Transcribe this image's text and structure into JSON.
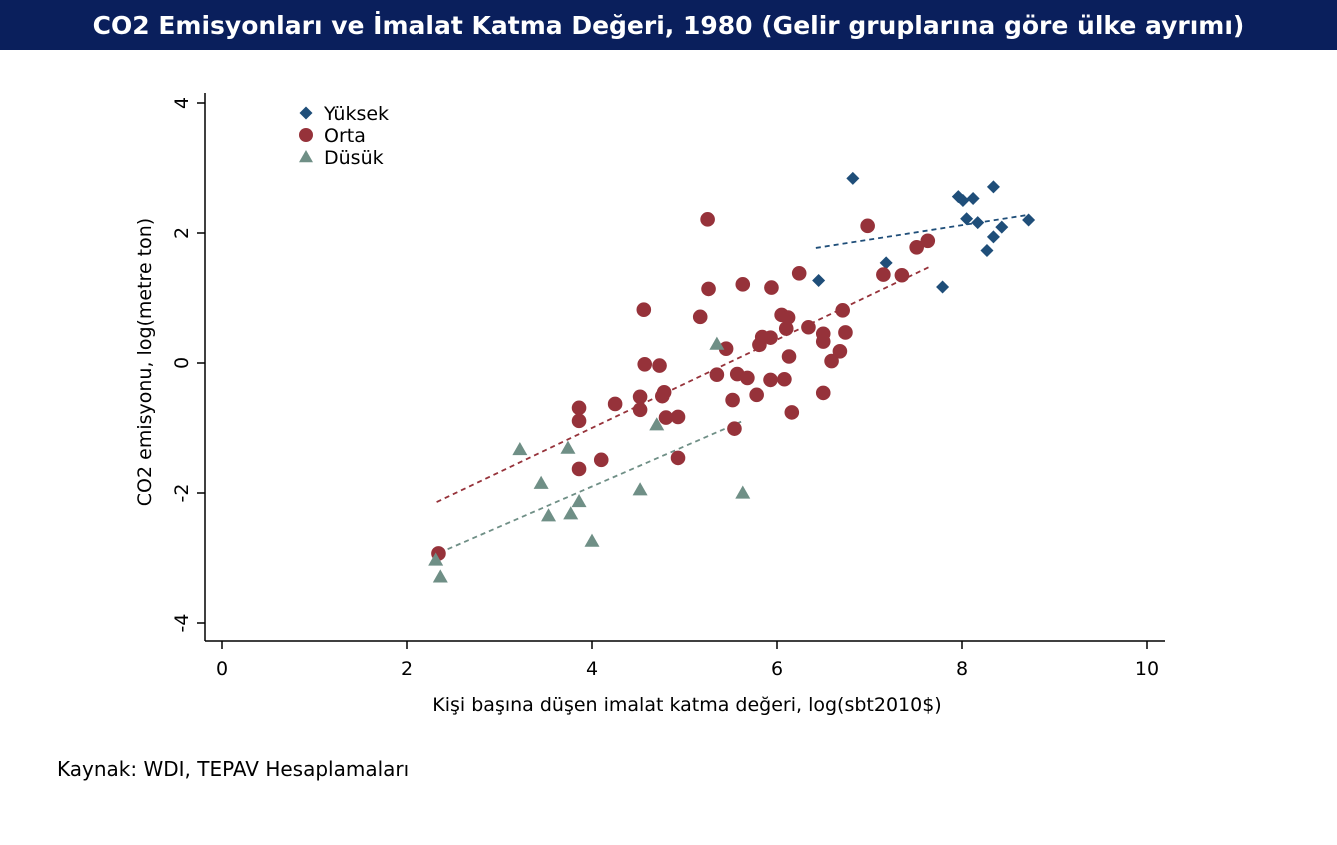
{
  "title": "CO2 Emisyonları ve İmalat Katma Değeri, 1980 (Gelir gruplarına göre ülke ayrımı)",
  "source": "Kaynak: WDI, TEPAV Hesaplamaları",
  "chart_data": {
    "type": "scatter",
    "xlabel": "Kişi başına düşen imalat katma değeri, log(sbt2010$)",
    "ylabel": "CO2 emisyonu, log(metre ton)",
    "xlim": [
      0,
      10
    ],
    "ylim": [
      -4,
      4
    ],
    "xticks": [
      "0",
      "2",
      "4",
      "6",
      "8",
      "10"
    ],
    "yticks": [
      "-4",
      "-2",
      "0",
      "2",
      "4"
    ],
    "legend_position": "top-left",
    "grid": false,
    "series": [
      {
        "name": "Yüksek",
        "marker": "diamond",
        "color": "#1f4e79",
        "points": [
          [
            6.82,
            2.84
          ],
          [
            6.45,
            1.27
          ],
          [
            7.18,
            1.54
          ],
          [
            7.79,
            1.17
          ],
          [
            7.96,
            2.56
          ],
          [
            8.01,
            2.5
          ],
          [
            8.05,
            2.22
          ],
          [
            8.12,
            2.53
          ],
          [
            8.17,
            2.16
          ],
          [
            8.27,
            1.73
          ],
          [
            8.34,
            2.71
          ],
          [
            8.34,
            1.94
          ],
          [
            8.43,
            2.09
          ],
          [
            8.72,
            2.2
          ]
        ],
        "fit": [
          [
            6.42,
            1.77
          ],
          [
            8.72,
            2.28
          ]
        ]
      },
      {
        "name": "Orta",
        "marker": "circle",
        "color": "#96323a",
        "points": [
          [
            2.34,
            -2.93
          ],
          [
            3.86,
            -0.69
          ],
          [
            3.86,
            -0.89
          ],
          [
            3.86,
            -1.63
          ],
          [
            4.1,
            -1.49
          ],
          [
            4.25,
            -0.63
          ],
          [
            4.52,
            -0.52
          ],
          [
            4.52,
            -0.72
          ],
          [
            4.56,
            0.82
          ],
          [
            4.57,
            -0.02
          ],
          [
            4.73,
            -0.04
          ],
          [
            4.76,
            -0.51
          ],
          [
            4.78,
            -0.45
          ],
          [
            4.8,
            -0.84
          ],
          [
            4.93,
            -0.83
          ],
          [
            4.93,
            -1.46
          ],
          [
            5.17,
            0.71
          ],
          [
            5.25,
            2.21
          ],
          [
            5.26,
            1.14
          ],
          [
            5.35,
            -0.18
          ],
          [
            5.45,
            0.22
          ],
          [
            5.52,
            -0.57
          ],
          [
            5.54,
            -1.01
          ],
          [
            5.57,
            -0.17
          ],
          [
            5.63,
            1.21
          ],
          [
            5.68,
            -0.23
          ],
          [
            5.78,
            -0.49
          ],
          [
            5.81,
            0.28
          ],
          [
            5.84,
            0.4
          ],
          [
            5.93,
            0.39
          ],
          [
            5.93,
            -0.26
          ],
          [
            5.94,
            1.16
          ],
          [
            6.05,
            0.74
          ],
          [
            6.08,
            -0.25
          ],
          [
            6.1,
            0.53
          ],
          [
            6.12,
            0.7
          ],
          [
            6.13,
            0.1
          ],
          [
            6.16,
            -0.76
          ],
          [
            6.24,
            1.38
          ],
          [
            6.34,
            0.55
          ],
          [
            6.5,
            0.45
          ],
          [
            6.5,
            0.33
          ],
          [
            6.5,
            -0.46
          ],
          [
            6.59,
            0.03
          ],
          [
            6.68,
            0.18
          ],
          [
            6.71,
            0.81
          ],
          [
            6.74,
            0.47
          ],
          [
            6.98,
            2.11
          ],
          [
            7.15,
            1.36
          ],
          [
            7.35,
            1.35
          ],
          [
            7.51,
            1.78
          ],
          [
            7.63,
            1.88
          ]
        ],
        "fit": [
          [
            2.32,
            -2.14
          ],
          [
            7.65,
            1.48
          ]
        ]
      },
      {
        "name": "Düsük",
        "marker": "triangle",
        "color": "#6f8f86",
        "points": [
          [
            2.31,
            -3.03
          ],
          [
            2.36,
            -3.29
          ],
          [
            3.22,
            -1.33
          ],
          [
            3.45,
            -1.85
          ],
          [
            3.53,
            -2.35
          ],
          [
            3.74,
            -1.31
          ],
          [
            3.77,
            -2.32
          ],
          [
            3.86,
            -2.13
          ],
          [
            4.0,
            -2.74
          ],
          [
            4.52,
            -1.95
          ],
          [
            4.7,
            -0.95
          ],
          [
            5.35,
            0.29
          ],
          [
            5.63,
            -2.0
          ]
        ],
        "fit": [
          [
            2.35,
            -2.92
          ],
          [
            5.65,
            -0.88
          ]
        ]
      }
    ]
  }
}
